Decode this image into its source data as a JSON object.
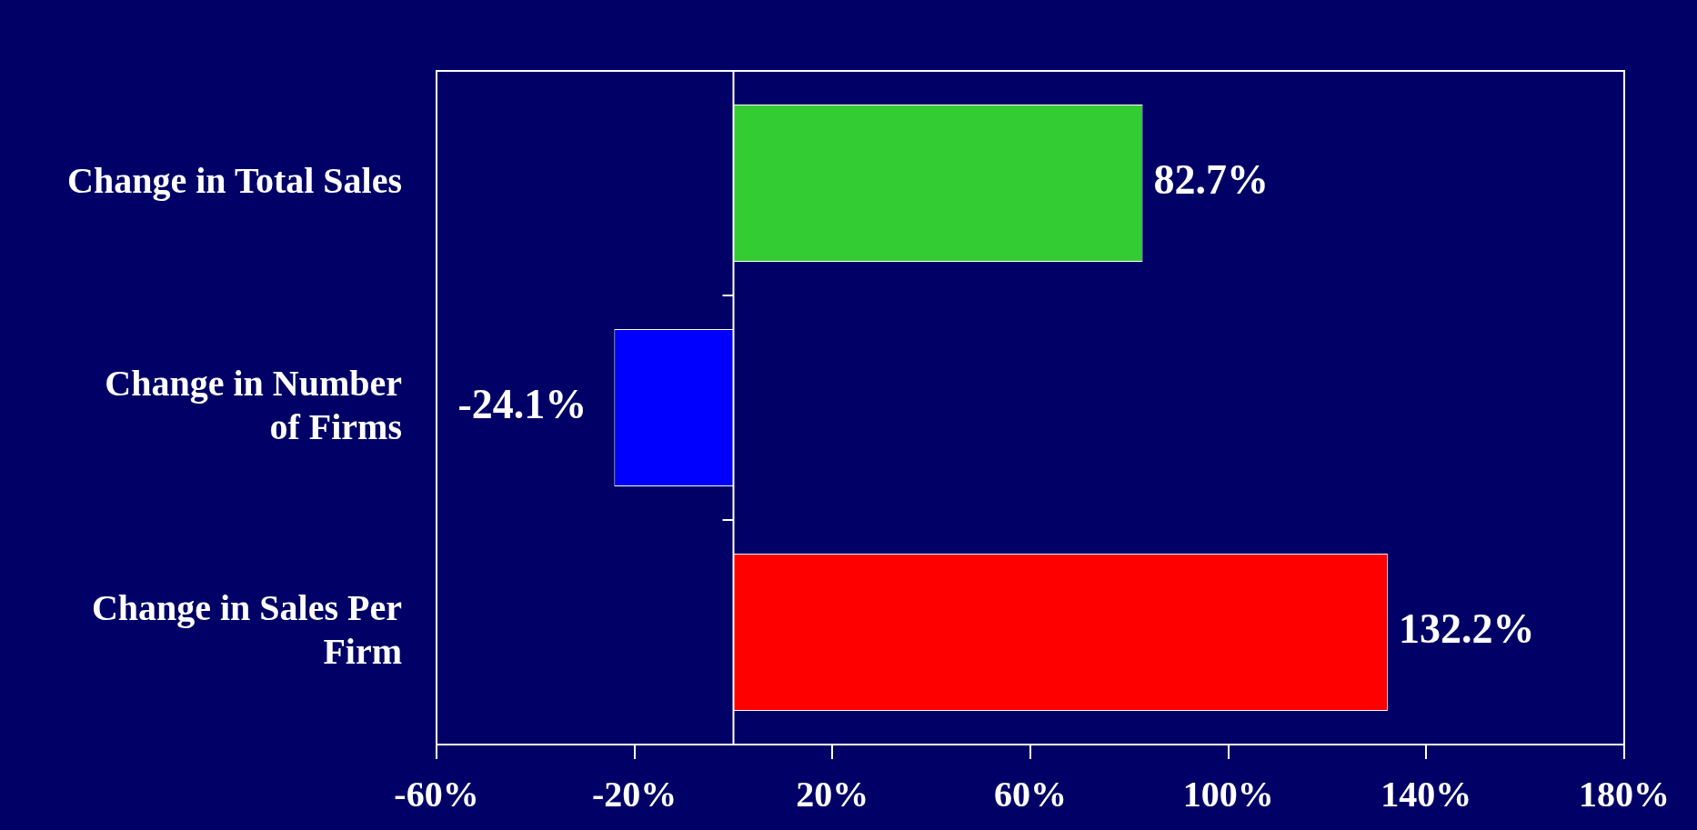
{
  "chart_data": {
    "type": "bar",
    "orientation": "horizontal",
    "categories": [
      "Change in Total Sales",
      "Change in Number of Firms",
      "Change in Sales Per Firm"
    ],
    "values": [
      82.7,
      -24.1,
      132.2
    ],
    "colors": [
      "#33cc33",
      "#0000ff",
      "#ff0000"
    ],
    "value_labels": [
      "82.7%",
      "-24.1%",
      "132.2%"
    ],
    "xlim": [
      -60,
      180
    ],
    "xticks": [
      {
        "value": -60,
        "label": "-60%"
      },
      {
        "value": -20,
        "label": "-20%"
      },
      {
        "value": 20,
        "label": "20%"
      },
      {
        "value": 60,
        "label": "60%"
      },
      {
        "value": 100,
        "label": "100%"
      },
      {
        "value": 140,
        "label": "140%"
      },
      {
        "value": 180,
        "label": "180%"
      }
    ],
    "grid": false,
    "legend": false
  }
}
